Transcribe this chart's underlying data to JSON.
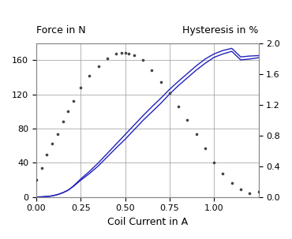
{
  "title_left": "Force in N",
  "title_right": "Hysteresis in %",
  "xlabel": "Coil Current in A",
  "xlim": [
    0,
    1.25
  ],
  "ylim_left": [
    0,
    180
  ],
  "ylim_right": [
    0,
    2.0
  ],
  "xticks": [
    0,
    0.25,
    0.5,
    0.75,
    1.0
  ],
  "yticks_left": [
    0,
    40,
    80,
    120,
    160
  ],
  "yticks_right": [
    0,
    0.4,
    0.8,
    1.2,
    1.6,
    2.0
  ],
  "force_x": [
    0.0,
    0.02,
    0.04,
    0.06,
    0.08,
    0.1,
    0.12,
    0.15,
    0.18,
    0.21,
    0.25,
    0.3,
    0.35,
    0.4,
    0.45,
    0.5,
    0.55,
    0.6,
    0.65,
    0.7,
    0.75,
    0.8,
    0.85,
    0.9,
    0.95,
    1.0,
    1.05,
    1.1,
    1.15,
    1.2,
    1.25
  ],
  "force_y1": [
    0.0,
    0.1,
    0.3,
    0.6,
    1.0,
    1.8,
    2.8,
    5.0,
    8.0,
    12.5,
    19.5,
    27.5,
    36.5,
    47.0,
    57.5,
    67.5,
    78.5,
    89.5,
    99.5,
    109.5,
    120.5,
    130.5,
    139.5,
    148.5,
    156.5,
    163.5,
    167.5,
    170.5,
    160.5,
    161.5,
    163.0
  ],
  "force_y2": [
    0.0,
    0.1,
    0.3,
    0.6,
    1.0,
    1.8,
    2.8,
    5.0,
    8.0,
    13.0,
    21.0,
    30.0,
    40.0,
    51.0,
    62.0,
    73.0,
    84.0,
    95.0,
    105.5,
    115.5,
    126.0,
    135.5,
    144.5,
    153.5,
    161.5,
    167.5,
    171.5,
    174.0,
    164.0,
    165.0,
    165.5
  ],
  "hyst_x": [
    0.0,
    0.03,
    0.06,
    0.09,
    0.12,
    0.15,
    0.18,
    0.21,
    0.25,
    0.3,
    0.35,
    0.4,
    0.45,
    0.48,
    0.5,
    0.52,
    0.55,
    0.6,
    0.65,
    0.7,
    0.75,
    0.8,
    0.85,
    0.9,
    0.95,
    1.0,
    1.05,
    1.1,
    1.15,
    1.2,
    1.25
  ],
  "hyst_y": [
    0.22,
    0.38,
    0.55,
    0.7,
    0.82,
    0.98,
    1.12,
    1.25,
    1.42,
    1.58,
    1.7,
    1.8,
    1.86,
    1.87,
    1.87,
    1.86,
    1.84,
    1.78,
    1.65,
    1.5,
    1.35,
    1.18,
    1.0,
    0.82,
    0.63,
    0.45,
    0.3,
    0.18,
    0.1,
    0.05,
    0.07
  ],
  "line_color": "#2222bb",
  "dot_color": "#444444",
  "bg_color": "#ffffff",
  "grid_color": "#999999",
  "label_fontsize": 9,
  "tick_fontsize": 8
}
